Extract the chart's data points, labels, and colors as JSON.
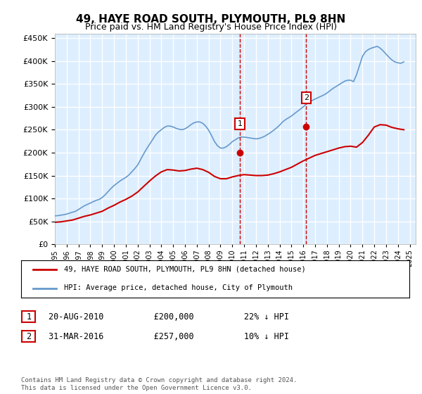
{
  "title": "49, HAYE ROAD SOUTH, PLYMOUTH, PL9 8HN",
  "subtitle": "Price paid vs. HM Land Registry's House Price Index (HPI)",
  "ylim": [
    0,
    460000
  ],
  "xlim_start": 1995.0,
  "xlim_end": 2025.5,
  "background_color": "#ffffff",
  "plot_bg_color": "#ddeeff",
  "grid_color": "#ffffff",
  "red_line_color": "#cc0000",
  "blue_line_color": "#6699cc",
  "marker1_x": 2010.63,
  "marker1_y": 200000,
  "marker2_x": 2016.25,
  "marker2_y": 257000,
  "vline_color": "#cc0000",
  "annotation1_label": "1",
  "annotation2_label": "2",
  "legend_label_red": "49, HAYE ROAD SOUTH, PLYMOUTH, PL9 8HN (detached house)",
  "legend_label_blue": "HPI: Average price, detached house, City of Plymouth",
  "table_row1": [
    "1",
    "20-AUG-2010",
    "£200,000",
    "22% ↓ HPI"
  ],
  "table_row2": [
    "2",
    "31-MAR-2016",
    "£257,000",
    "10% ↓ HPI"
  ],
  "footer": "Contains HM Land Registry data © Crown copyright and database right 2024.\nThis data is licensed under the Open Government Licence v3.0.",
  "hpi_years": [
    1995.0,
    1995.25,
    1995.5,
    1995.75,
    1996.0,
    1996.25,
    1996.5,
    1996.75,
    1997.0,
    1997.25,
    1997.5,
    1997.75,
    1998.0,
    1998.25,
    1998.5,
    1998.75,
    1999.0,
    1999.25,
    1999.5,
    1999.75,
    2000.0,
    2000.25,
    2000.5,
    2000.75,
    2001.0,
    2001.25,
    2001.5,
    2001.75,
    2002.0,
    2002.25,
    2002.5,
    2002.75,
    2003.0,
    2003.25,
    2003.5,
    2003.75,
    2004.0,
    2004.25,
    2004.5,
    2004.75,
    2005.0,
    2005.25,
    2005.5,
    2005.75,
    2006.0,
    2006.25,
    2006.5,
    2006.75,
    2007.0,
    2007.25,
    2007.5,
    2007.75,
    2008.0,
    2008.25,
    2008.5,
    2008.75,
    2009.0,
    2009.25,
    2009.5,
    2009.75,
    2010.0,
    2010.25,
    2010.5,
    2010.75,
    2011.0,
    2011.25,
    2011.5,
    2011.75,
    2012.0,
    2012.25,
    2012.5,
    2012.75,
    2013.0,
    2013.25,
    2013.5,
    2013.75,
    2014.0,
    2014.25,
    2014.5,
    2014.75,
    2015.0,
    2015.25,
    2015.5,
    2015.75,
    2016.0,
    2016.25,
    2016.5,
    2016.75,
    2017.0,
    2017.25,
    2017.5,
    2017.75,
    2018.0,
    2018.25,
    2018.5,
    2018.75,
    2019.0,
    2019.25,
    2019.5,
    2019.75,
    2020.0,
    2020.25,
    2020.5,
    2020.75,
    2021.0,
    2021.25,
    2021.5,
    2021.75,
    2022.0,
    2022.25,
    2022.5,
    2022.75,
    2023.0,
    2023.25,
    2023.5,
    2023.75,
    2024.0,
    2024.25,
    2024.5
  ],
  "hpi_values": [
    62000,
    62500,
    63500,
    64500,
    66000,
    68000,
    70000,
    72000,
    76000,
    80000,
    84000,
    87000,
    90000,
    93000,
    96000,
    98000,
    102000,
    108000,
    115000,
    122000,
    128000,
    133000,
    138000,
    142000,
    146000,
    151000,
    158000,
    165000,
    173000,
    185000,
    197000,
    208000,
    218000,
    228000,
    238000,
    245000,
    250000,
    255000,
    258000,
    258000,
    256000,
    253000,
    251000,
    250000,
    252000,
    256000,
    261000,
    265000,
    267000,
    267000,
    264000,
    258000,
    249000,
    237000,
    224000,
    215000,
    210000,
    210000,
    213000,
    218000,
    224000,
    228000,
    232000,
    234000,
    234000,
    233000,
    232000,
    231000,
    230000,
    231000,
    233000,
    236000,
    240000,
    244000,
    249000,
    254000,
    260000,
    267000,
    272000,
    276000,
    280000,
    285000,
    290000,
    295000,
    300000,
    306000,
    311000,
    314000,
    317000,
    320000,
    323000,
    326000,
    330000,
    335000,
    340000,
    344000,
    348000,
    352000,
    356000,
    358000,
    358000,
    355000,
    370000,
    390000,
    410000,
    420000,
    425000,
    428000,
    430000,
    432000,
    428000,
    422000,
    415000,
    408000,
    402000,
    398000,
    396000,
    395000,
    398000
  ],
  "red_years": [
    1995.0,
    1995.5,
    1996.0,
    1996.5,
    1997.0,
    1997.5,
    1998.0,
    1998.5,
    1999.0,
    1999.5,
    2000.0,
    2000.5,
    2001.0,
    2001.5,
    2002.0,
    2002.5,
    2003.0,
    2003.5,
    2004.0,
    2004.5,
    2005.0,
    2005.5,
    2006.0,
    2006.5,
    2007.0,
    2007.5,
    2008.0,
    2008.5,
    2009.0,
    2009.5,
    2010.0,
    2010.5,
    2011.0,
    2011.5,
    2012.0,
    2012.5,
    2013.0,
    2013.5,
    2014.0,
    2014.5,
    2015.0,
    2015.5,
    2016.0,
    2016.5,
    2017.0,
    2017.5,
    2018.0,
    2018.5,
    2019.0,
    2019.5,
    2020.0,
    2020.5,
    2021.0,
    2021.5,
    2022.0,
    2022.5,
    2023.0,
    2023.5,
    2024.0,
    2024.5
  ],
  "red_values": [
    48000,
    49000,
    51000,
    53000,
    57000,
    61000,
    64000,
    68000,
    72000,
    79000,
    85000,
    92000,
    98000,
    105000,
    114000,
    126000,
    138000,
    149000,
    158000,
    163000,
    162000,
    160000,
    161000,
    164000,
    166000,
    163000,
    157000,
    148000,
    143000,
    143000,
    147000,
    150000,
    152000,
    151000,
    150000,
    150000,
    151000,
    154000,
    158000,
    163000,
    168000,
    175000,
    182000,
    188000,
    194000,
    198000,
    202000,
    206000,
    210000,
    213000,
    214000,
    212000,
    222000,
    238000,
    256000,
    261000,
    260000,
    255000,
    252000,
    250000
  ]
}
